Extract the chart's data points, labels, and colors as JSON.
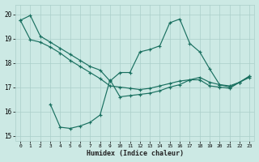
{
  "xlabel": "Humidex (Indice chaleur)",
  "x_ticks": [
    0,
    1,
    2,
    3,
    4,
    5,
    6,
    7,
    8,
    9,
    10,
    11,
    12,
    13,
    14,
    15,
    16,
    17,
    18,
    19,
    20,
    21,
    22,
    23
  ],
  "ylim": [
    14.8,
    20.4
  ],
  "yticks": [
    15,
    16,
    17,
    18,
    19,
    20
  ],
  "bg_color": "#cce9e4",
  "grid_color": "#aacfc9",
  "line_color": "#1a7060",
  "series": [
    {
      "x": [
        0,
        1,
        2,
        3,
        4,
        5,
        6,
        7,
        8,
        9,
        10,
        11,
        12,
        13,
        14,
        15,
        16,
        17,
        18,
        19,
        20,
        21,
        22,
        23
      ],
      "y": [
        19.75,
        19.95,
        19.1,
        18.85,
        18.6,
        18.35,
        18.1,
        17.85,
        17.7,
        17.25,
        17.6,
        17.6,
        18.45,
        18.55,
        18.7,
        19.65,
        19.8,
        18.8,
        18.45,
        17.75,
        17.1,
        17.05,
        17.2,
        17.4
      ]
    },
    {
      "x": [
        0,
        1,
        2,
        3,
        4,
        5,
        6,
        7,
        8,
        9,
        10,
        11,
        12,
        13,
        14,
        15,
        16,
        17,
        18,
        19,
        20,
        21,
        22,
        23
      ],
      "y": [
        19.75,
        18.95,
        18.85,
        18.65,
        18.4,
        18.1,
        17.85,
        17.6,
        17.35,
        17.05,
        17.0,
        16.95,
        16.9,
        16.95,
        17.05,
        17.15,
        17.25,
        17.3,
        17.4,
        17.2,
        17.1,
        17.0,
        17.2,
        17.45
      ]
    },
    {
      "x": [
        3,
        4,
        5,
        6,
        7,
        8,
        9,
        10,
        11,
        12,
        13,
        14,
        15,
        16,
        17,
        18,
        19,
        20,
        21,
        22,
        23
      ],
      "y": [
        16.3,
        15.35,
        15.3,
        15.4,
        15.55,
        15.85,
        17.3,
        16.6,
        16.65,
        16.7,
        16.75,
        16.85,
        17.0,
        17.1,
        17.3,
        17.3,
        17.05,
        17.0,
        16.95,
        17.2,
        17.45
      ]
    }
  ]
}
